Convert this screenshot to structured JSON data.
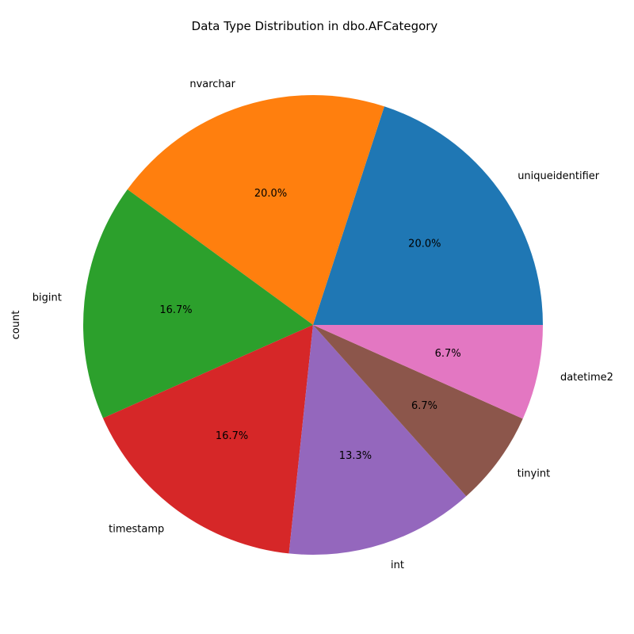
{
  "chart_data": {
    "type": "pie",
    "title": "Data Type Distribution in dbo.AFCategory",
    "ylabel": "count",
    "start_angle_deg": 0,
    "direction": "counterclockwise",
    "slices": [
      {
        "label": "uniqueidentifier",
        "percent": 20.0,
        "percent_label": "20.0%",
        "color": "#1f77b4"
      },
      {
        "label": "nvarchar",
        "percent": 20.0,
        "percent_label": "20.0%",
        "color": "#ff7f0e"
      },
      {
        "label": "bigint",
        "percent": 16.7,
        "percent_label": "16.7%",
        "color": "#2ca02c"
      },
      {
        "label": "timestamp",
        "percent": 16.7,
        "percent_label": "16.7%",
        "color": "#d62728"
      },
      {
        "label": "int",
        "percent": 13.3,
        "percent_label": "13.3%",
        "color": "#9467bd"
      },
      {
        "label": "tinyint",
        "percent": 6.7,
        "percent_label": "6.7%",
        "color": "#8c564b"
      },
      {
        "label": "datetime2",
        "percent": 6.7,
        "percent_label": "6.7%",
        "color": "#e377c2"
      }
    ]
  }
}
